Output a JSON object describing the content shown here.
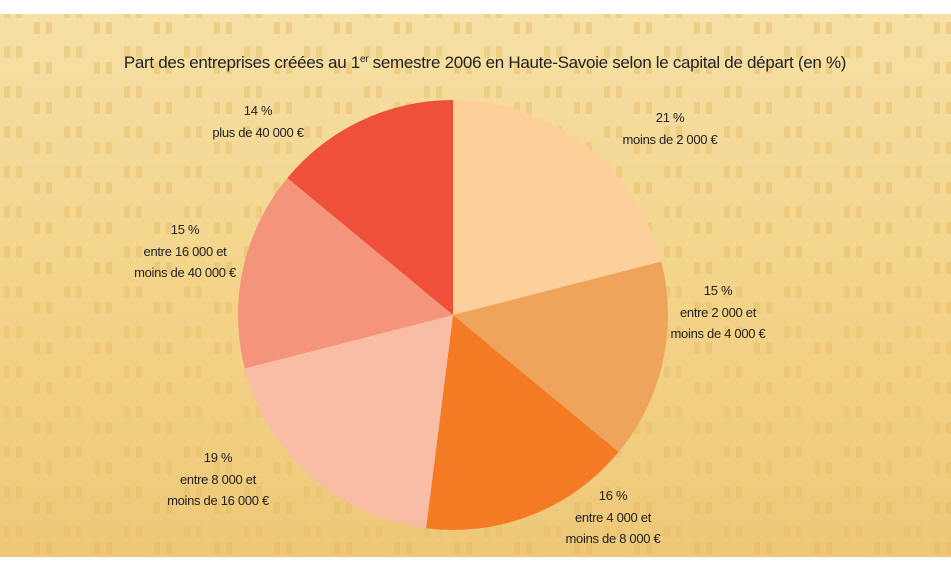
{
  "chart_data": {
    "type": "pie",
    "title": [
      "Part des entreprises créées au 1",
      "er",
      " semestre 2006 en Haute-Savoie selon le capital de départ (en %)"
    ],
    "categories": [
      [
        "moins de 2 000 €"
      ],
      [
        "entre 2 000 et",
        "moins de 4 000 €"
      ],
      [
        "entre 4 000 et",
        "moins de 8 000 €"
      ],
      [
        "entre 8 000 et",
        "moins de 16 000 €"
      ],
      [
        "entre 16 000 et",
        "moins de 40 000 €"
      ],
      [
        "plus de 40 000 €"
      ]
    ],
    "values": [
      21,
      15,
      16,
      19,
      15,
      14
    ],
    "value_labels": [
      "21 %",
      "15 %",
      "16 %",
      "19 %",
      "15 %",
      "14 %"
    ],
    "colors": [
      "#fdd09b",
      "#efa45b",
      "#f47b23",
      "#f9bda5",
      "#f4957b",
      "#ef5039"
    ]
  }
}
